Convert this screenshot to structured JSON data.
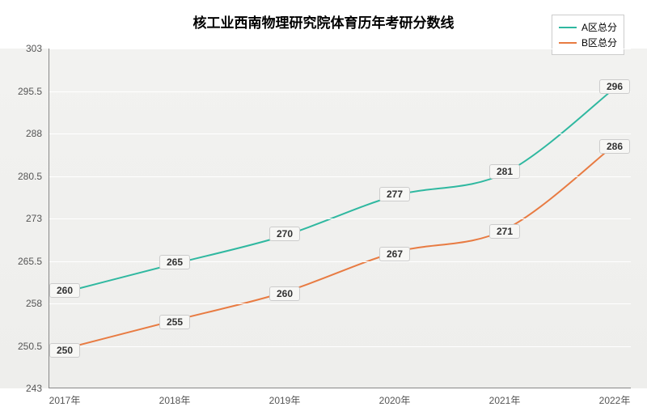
{
  "chart": {
    "type": "line",
    "title": "核工业西南物理研究院体育历年考研分数线",
    "title_fontsize": 17,
    "background_top": "#ffffff",
    "background_plot": "#f0f0ee",
    "grid_color": "#ffffff",
    "axis_color": "#888888",
    "tick_font_color": "#555555",
    "tick_fontsize": 12,
    "x": {
      "categories": [
        "2017年",
        "2018年",
        "2019年",
        "2020年",
        "2021年",
        "2022年"
      ]
    },
    "y": {
      "min": 243,
      "max": 303,
      "ticks": [
        243,
        250.5,
        258,
        265.5,
        273,
        280.5,
        288,
        295.5,
        303
      ]
    },
    "series": [
      {
        "name": "A区总分",
        "color": "#2fb8a0",
        "line_width": 2,
        "values": [
          260,
          265,
          270,
          277,
          281,
          296
        ],
        "label_offset_y": -16
      },
      {
        "name": "B区总分",
        "color": "#e87b42",
        "line_width": 2,
        "values": [
          250,
          255,
          260,
          267,
          271,
          286
        ],
        "label_offset_y": 16
      }
    ],
    "legend": {
      "position": "top-right",
      "background": "#ffffff",
      "border": "#cccccc"
    },
    "label_box": {
      "background": "#f7f7f5",
      "border": "#cccccc",
      "fontsize": 12
    }
  }
}
